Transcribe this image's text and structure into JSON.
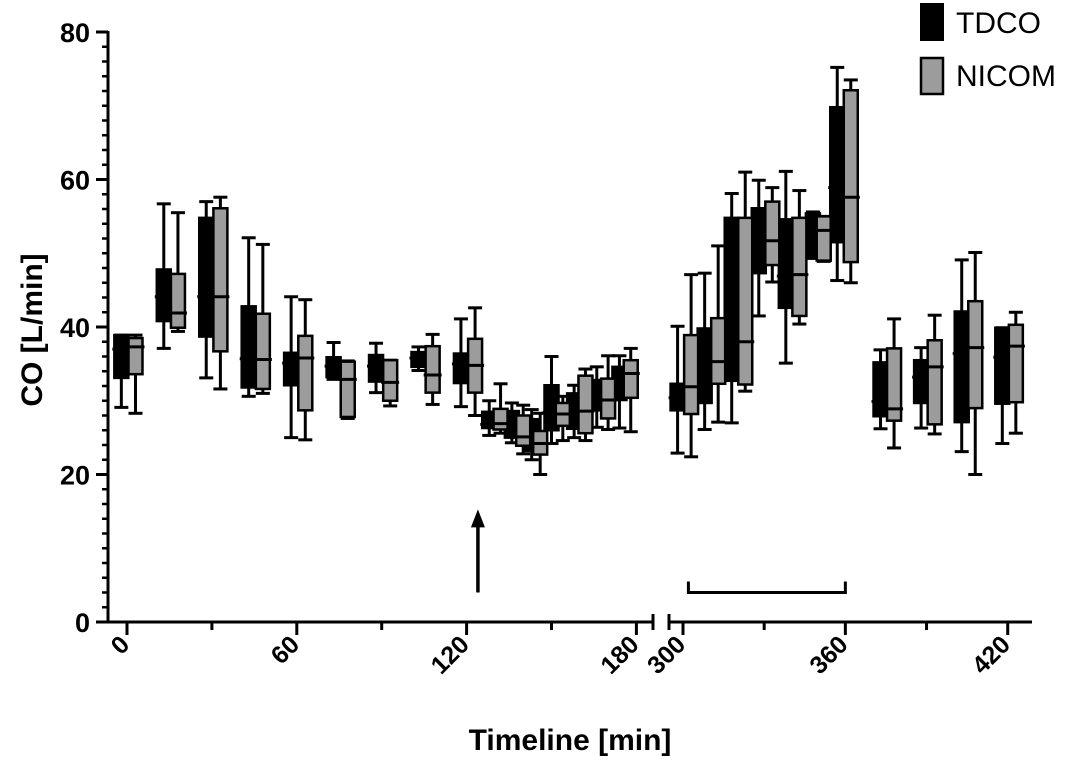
{
  "chart_data": {
    "type": "box",
    "xlabel": "Timeline [min]",
    "ylabel": "CO [L/min]",
    "ylim": [
      0,
      80
    ],
    "yticks": [
      0,
      20,
      40,
      60,
      80
    ],
    "xticks_left": [
      0,
      60,
      120,
      180
    ],
    "xticks_right": [
      300,
      360,
      420
    ],
    "x_axis_break": [
      180,
      300
    ],
    "legend_position": "top-right",
    "legend": [
      {
        "name": "TDCO",
        "color": "#000000"
      },
      {
        "name": "NICOM",
        "color": "#9c9c9c"
      }
    ],
    "annotations": [
      {
        "type": "arrow",
        "x": 124,
        "from_y": 4,
        "to_y": 15
      },
      {
        "type": "bracket",
        "x_start": 302,
        "x_end": 360,
        "y": 4
      }
    ],
    "series": [
      {
        "name": "TDCO",
        "boxes": [
          {
            "x": -2,
            "min": 29.1,
            "q1": 33.1,
            "median": 37.0,
            "q3": 38.9,
            "max": 38.9
          },
          {
            "x": 13,
            "min": 37.1,
            "q1": 40.8,
            "median": 44.1,
            "q3": 47.8,
            "max": 56.7
          },
          {
            "x": 28,
            "min": 33.1,
            "q1": 38.7,
            "median": 44.1,
            "q3": 54.8,
            "max": 57.0
          },
          {
            "x": 43,
            "min": 30.6,
            "q1": 31.8,
            "median": 35.7,
            "q3": 42.8,
            "max": 52.1
          },
          {
            "x": 58,
            "min": 25.0,
            "q1": 32.1,
            "median": 35.1,
            "q3": 36.5,
            "max": 44.1
          },
          {
            "x": 73,
            "min": 32.9,
            "q1": 33.2,
            "median": 34.7,
            "q3": 35.9,
            "max": 37.9
          },
          {
            "x": 88,
            "min": 31.1,
            "q1": 32.6,
            "median": 34.7,
            "q3": 36.2,
            "max": 37.8
          },
          {
            "x": 103,
            "min": 34.1,
            "q1": 34.6,
            "median": 35.8,
            "q3": 36.6,
            "max": 37.3
          },
          {
            "x": 118,
            "min": 29.2,
            "q1": 32.4,
            "median": 35.0,
            "q3": 36.4,
            "max": 41.1
          },
          {
            "x": 128,
            "min": 25.3,
            "q1": 26.3,
            "median": 26.8,
            "q3": 28.5,
            "max": 30.0
          },
          {
            "x": 136,
            "min": 24.3,
            "q1": 25.0,
            "median": 26.3,
            "q3": 28.6,
            "max": 29.7
          },
          {
            "x": 143,
            "min": 22.0,
            "q1": 23.2,
            "median": 25.0,
            "q3": 27.5,
            "max": 28.8
          },
          {
            "x": 150,
            "min": 24.2,
            "q1": 26.0,
            "median": 28.4,
            "q3": 32.1,
            "max": 36.0
          },
          {
            "x": 158,
            "min": 25.0,
            "q1": 26.2,
            "median": 29.1,
            "q3": 31.0,
            "max": 32.1
          },
          {
            "x": 166,
            "min": 26.4,
            "q1": 28.7,
            "median": 30.4,
            "q3": 32.8,
            "max": 34.6
          },
          {
            "x": 174,
            "min": 26.3,
            "q1": 30.1,
            "median": 31.9,
            "q3": 34.6,
            "max": 36.1
          },
          {
            "x": 298,
            "min": 22.9,
            "q1": 28.7,
            "median": 30.4,
            "q3": 32.3,
            "max": 40.1
          },
          {
            "x": 308,
            "min": 26.1,
            "q1": 29.7,
            "median": 36.1,
            "q3": 39.8,
            "max": 47.3
          },
          {
            "x": 318,
            "min": 27.0,
            "q1": 32.7,
            "median": 38.6,
            "q3": 54.8,
            "max": 58.1
          },
          {
            "x": 328,
            "min": 41.5,
            "q1": 47.3,
            "median": 52.0,
            "q3": 56.1,
            "max": 59.9
          },
          {
            "x": 338,
            "min": 35.1,
            "q1": 42.6,
            "median": 46.9,
            "q3": 54.6,
            "max": 61.1
          },
          {
            "x": 348,
            "min": 49.3,
            "q1": 49.6,
            "median": 52.4,
            "q3": 55.4,
            "max": 55.6
          },
          {
            "x": 357,
            "min": 46.3,
            "q1": 51.5,
            "median": 58.9,
            "q3": 69.8,
            "max": 75.2
          },
          {
            "x": 373,
            "min": 26.2,
            "q1": 27.9,
            "median": 29.9,
            "q3": 35.2,
            "max": 36.9
          },
          {
            "x": 388,
            "min": 26.3,
            "q1": 29.7,
            "median": 33.2,
            "q3": 35.5,
            "max": 37.2
          },
          {
            "x": 403,
            "min": 23.1,
            "q1": 27.1,
            "median": 36.4,
            "q3": 42.1,
            "max": 49.1
          },
          {
            "x": 418,
            "min": 24.2,
            "q1": 29.6,
            "median": 35.9,
            "q3": 39.9,
            "max": 39.9
          }
        ]
      },
      {
        "name": "NICOM",
        "boxes": [
          {
            "x": 3,
            "min": 28.3,
            "q1": 33.6,
            "median": 37.3,
            "q3": 38.5,
            "max": 38.9
          },
          {
            "x": 18,
            "min": 39.4,
            "q1": 39.9,
            "median": 41.9,
            "q3": 47.2,
            "max": 55.5
          },
          {
            "x": 33,
            "min": 31.6,
            "q1": 36.7,
            "median": 44.1,
            "q3": 56.1,
            "max": 57.6
          },
          {
            "x": 48,
            "min": 31.0,
            "q1": 31.6,
            "median": 35.6,
            "q3": 41.8,
            "max": 51.2
          },
          {
            "x": 63,
            "min": 24.7,
            "q1": 28.7,
            "median": 35.8,
            "q3": 38.8,
            "max": 43.7
          },
          {
            "x": 78,
            "min": 27.6,
            "q1": 27.8,
            "median": 32.9,
            "q3": 35.3,
            "max": 35.4
          },
          {
            "x": 93,
            "min": 29.3,
            "q1": 30.0,
            "median": 32.5,
            "q3": 35.5,
            "max": 35.5
          },
          {
            "x": 108,
            "min": 29.5,
            "q1": 31.1,
            "median": 33.5,
            "q3": 37.4,
            "max": 39.0
          },
          {
            "x": 123,
            "min": 28.0,
            "q1": 31.1,
            "median": 34.8,
            "q3": 38.4,
            "max": 42.6
          },
          {
            "x": 132,
            "min": 25.6,
            "q1": 26.1,
            "median": 26.9,
            "q3": 28.9,
            "max": 32.3
          },
          {
            "x": 140,
            "min": 22.8,
            "q1": 23.9,
            "median": 25.1,
            "q3": 28.0,
            "max": 29.4
          },
          {
            "x": 146,
            "min": 20.0,
            "q1": 22.7,
            "median": 24.2,
            "q3": 25.9,
            "max": 28.3
          },
          {
            "x": 154,
            "min": 24.6,
            "q1": 26.6,
            "median": 28.2,
            "q3": 29.7,
            "max": 30.6
          },
          {
            "x": 162,
            "min": 24.6,
            "q1": 25.6,
            "median": 28.6,
            "q3": 33.4,
            "max": 34.3
          },
          {
            "x": 170,
            "min": 26.1,
            "q1": 27.6,
            "median": 30.1,
            "q3": 33.0,
            "max": 36.1
          },
          {
            "x": 178,
            "min": 25.8,
            "q1": 30.4,
            "median": 33.7,
            "q3": 35.5,
            "max": 37.1
          },
          {
            "x": 303,
            "min": 22.4,
            "q1": 28.2,
            "median": 31.9,
            "q3": 38.9,
            "max": 47.1
          },
          {
            "x": 313,
            "min": 27.1,
            "q1": 32.3,
            "median": 35.3,
            "q3": 41.2,
            "max": 51.0
          },
          {
            "x": 323,
            "min": 31.3,
            "q1": 32.2,
            "median": 38.0,
            "q3": 54.8,
            "max": 61.0
          },
          {
            "x": 333,
            "min": 46.1,
            "q1": 48.4,
            "median": 51.7,
            "q3": 57.0,
            "max": 58.9
          },
          {
            "x": 343,
            "min": 40.4,
            "q1": 41.5,
            "median": 47.1,
            "q3": 54.8,
            "max": 58.5
          },
          {
            "x": 352,
            "min": 48.9,
            "q1": 49.0,
            "median": 53.1,
            "q3": 55.0,
            "max": 55.0
          },
          {
            "x": 362,
            "min": 46.0,
            "q1": 48.8,
            "median": 57.6,
            "q3": 72.1,
            "max": 73.5
          },
          {
            "x": 378,
            "min": 23.6,
            "q1": 27.3,
            "median": 28.9,
            "q3": 37.1,
            "max": 41.1
          },
          {
            "x": 393,
            "min": 25.5,
            "q1": 26.8,
            "median": 34.6,
            "q3": 38.2,
            "max": 41.6
          },
          {
            "x": 408,
            "min": 20.0,
            "q1": 29.0,
            "median": 37.2,
            "q3": 43.5,
            "max": 50.1
          },
          {
            "x": 423,
            "min": 25.6,
            "q1": 29.8,
            "median": 37.4,
            "q3": 40.3,
            "max": 42.0
          }
        ]
      }
    ]
  }
}
